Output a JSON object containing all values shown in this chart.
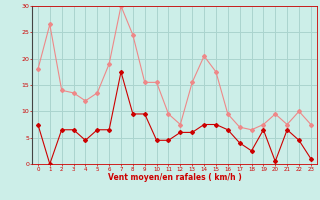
{
  "x": [
    0,
    1,
    2,
    3,
    4,
    5,
    6,
    7,
    8,
    9,
    10,
    11,
    12,
    13,
    14,
    15,
    16,
    17,
    18,
    19,
    20,
    21,
    22,
    23
  ],
  "wind_mean": [
    7.5,
    0,
    6.5,
    6.5,
    4.5,
    6.5,
    6.5,
    17.5,
    9.5,
    9.5,
    4.5,
    4.5,
    6,
    6,
    7.5,
    7.5,
    6.5,
    4,
    2.5,
    6.5,
    0.5,
    6.5,
    4.5,
    1
  ],
  "wind_gust": [
    18,
    26.5,
    14,
    13.5,
    12,
    13.5,
    19,
    30,
    24.5,
    15.5,
    15.5,
    9.5,
    7.5,
    15.5,
    20.5,
    17.5,
    9.5,
    7,
    6.5,
    7.5,
    9.5,
    7.5,
    10,
    7.5
  ],
  "xlabel": "Vent moyen/en rafales ( km/h )",
  "ylim": [
    0,
    30
  ],
  "yticks": [
    0,
    5,
    10,
    15,
    20,
    25,
    30
  ],
  "bg_color": "#cceee8",
  "grid_color": "#aad4ce",
  "line_color_mean": "#cc0000",
  "line_color_gust": "#ee8888",
  "marker_size": 2.0,
  "line_width": 0.8
}
